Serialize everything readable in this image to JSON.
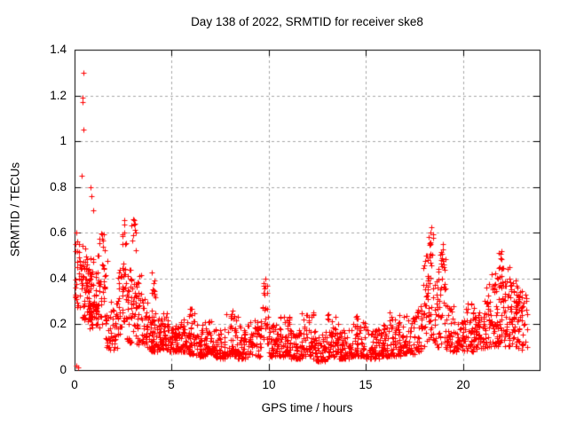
{
  "chart_data": {
    "type": "scatter",
    "title": "Day 138 of 2022, SRMTID for receiver ske8",
    "xlabel": "GPS time / hours",
    "ylabel": "SRMTID / TECUs",
    "xlim": [
      0,
      23.93
    ],
    "ylim": [
      0,
      1.4
    ],
    "xticks": [
      0,
      5,
      10,
      15,
      20
    ],
    "xtick_labels": [
      "0",
      "5",
      "10",
      "15",
      "20"
    ],
    "yticks": [
      0,
      0.2,
      0.4,
      0.6,
      0.8,
      1.0,
      1.2,
      1.4
    ],
    "ytick_labels": [
      "0",
      "0.2",
      "0.4",
      "0.6",
      "0.8",
      "1",
      "1.2",
      "1.4"
    ],
    "grid": true,
    "legend": "none",
    "marker": "plus",
    "marker_size": 7,
    "marker_color": "#ff0000",
    "grid_color": "#a8a8a8",
    "axis_color": "#000000",
    "background_color": "#ffffff",
    "seed": 138,
    "outliers": [
      [
        0.45,
        1.3
      ],
      [
        0.42,
        1.19
      ],
      [
        0.4,
        1.17
      ],
      [
        0.45,
        1.05
      ],
      [
        0.35,
        0.85
      ],
      [
        0.8,
        0.8
      ],
      [
        0.85,
        0.76
      ],
      [
        0.95,
        0.7
      ],
      [
        0.05,
        0.33
      ],
      [
        0.06,
        0.36
      ],
      [
        0.08,
        0.6
      ],
      [
        0.1,
        0.02
      ],
      [
        0.18,
        0.01
      ],
      [
        2.55,
        0.655
      ],
      [
        3.0,
        0.66
      ],
      [
        9.79,
        0.33
      ],
      [
        9.8,
        0.37
      ],
      [
        9.82,
        0.4
      ],
      [
        18.3,
        0.6
      ],
      [
        18.35,
        0.625
      ],
      [
        18.95,
        0.55
      ],
      [
        21.95,
        0.52
      ],
      [
        22.4,
        0.45
      ],
      [
        23.2,
        0.33
      ]
    ],
    "clusters": [
      [
        0.02,
        0.15,
        12,
        0.28,
        0.62,
        1.0
      ],
      [
        0.15,
        0.7,
        35,
        0.25,
        0.55,
        1.2
      ],
      [
        0.4,
        1.2,
        70,
        0.22,
        0.5,
        1.4
      ],
      [
        0.7,
        1.6,
        60,
        0.18,
        0.45,
        1.4
      ],
      [
        1.2,
        1.7,
        20,
        0.35,
        0.6,
        1.1
      ],
      [
        1.6,
        2.2,
        45,
        0.09,
        0.32,
        1.5
      ],
      [
        2.2,
        2.45,
        25,
        0.15,
        0.5,
        1.2
      ],
      [
        2.45,
        2.65,
        28,
        0.2,
        0.65,
        1.1
      ],
      [
        2.65,
        2.95,
        30,
        0.12,
        0.45,
        1.4
      ],
      [
        2.9,
        3.15,
        30,
        0.15,
        0.66,
        1.1
      ],
      [
        3.1,
        3.45,
        30,
        0.1,
        0.45,
        1.4
      ],
      [
        3.45,
        3.85,
        35,
        0.1,
        0.32,
        1.5
      ],
      [
        3.85,
        4.3,
        45,
        0.08,
        0.22,
        1.6
      ],
      [
        3.95,
        4.15,
        18,
        0.12,
        0.43,
        1.2
      ],
      [
        4.3,
        4.8,
        50,
        0.09,
        0.25,
        1.8
      ],
      [
        4.8,
        5.3,
        50,
        0.08,
        0.2,
        1.6
      ],
      [
        5.3,
        5.85,
        55,
        0.08,
        0.24,
        1.7
      ],
      [
        5.85,
        6.2,
        40,
        0.07,
        0.28,
        1.8
      ],
      [
        6.2,
        6.7,
        45,
        0.06,
        0.2,
        1.7
      ],
      [
        6.7,
        7.2,
        45,
        0.07,
        0.22,
        1.7
      ],
      [
        7.2,
        7.8,
        50,
        0.05,
        0.18,
        1.6
      ],
      [
        7.8,
        8.4,
        50,
        0.06,
        0.26,
        1.8
      ],
      [
        8.4,
        9.0,
        50,
        0.05,
        0.2,
        1.7
      ],
      [
        9.0,
        9.6,
        50,
        0.06,
        0.22,
        1.7
      ],
      [
        9.68,
        9.95,
        22,
        0.1,
        0.42,
        1.1
      ],
      [
        9.95,
        10.5,
        50,
        0.06,
        0.2,
        1.7
      ],
      [
        10.5,
        11.1,
        55,
        0.06,
        0.25,
        1.8
      ],
      [
        11.1,
        11.7,
        55,
        0.05,
        0.18,
        1.6
      ],
      [
        11.7,
        12.3,
        55,
        0.06,
        0.26,
        1.8
      ],
      [
        12.3,
        13.0,
        60,
        0.04,
        0.17,
        1.6
      ],
      [
        13.0,
        13.6,
        55,
        0.06,
        0.26,
        1.9
      ],
      [
        13.6,
        14.3,
        60,
        0.05,
        0.18,
        1.6
      ],
      [
        14.3,
        15.0,
        60,
        0.06,
        0.24,
        1.8
      ],
      [
        15.0,
        15.7,
        60,
        0.05,
        0.18,
        1.6
      ],
      [
        15.7,
        16.2,
        50,
        0.06,
        0.2,
        1.7
      ],
      [
        16.2,
        16.8,
        55,
        0.06,
        0.26,
        1.8
      ],
      [
        16.8,
        17.5,
        55,
        0.07,
        0.24,
        1.7
      ],
      [
        17.5,
        17.9,
        35,
        0.08,
        0.3,
        1.5
      ],
      [
        17.9,
        18.2,
        30,
        0.1,
        0.5,
        1.2
      ],
      [
        18.2,
        18.5,
        35,
        0.12,
        0.62,
        1.1
      ],
      [
        18.5,
        18.8,
        30,
        0.1,
        0.45,
        1.25
      ],
      [
        18.8,
        19.15,
        35,
        0.1,
        0.55,
        1.15
      ],
      [
        19.15,
        19.5,
        30,
        0.08,
        0.3,
        1.5
      ],
      [
        19.5,
        20.1,
        50,
        0.08,
        0.22,
        1.6
      ],
      [
        20.1,
        20.6,
        45,
        0.08,
        0.3,
        1.7
      ],
      [
        20.6,
        21.1,
        45,
        0.09,
        0.26,
        1.6
      ],
      [
        21.1,
        21.45,
        35,
        0.1,
        0.38,
        1.3
      ],
      [
        21.45,
        21.8,
        40,
        0.1,
        0.45,
        1.2
      ],
      [
        21.8,
        22.1,
        40,
        0.12,
        0.52,
        1.2
      ],
      [
        22.1,
        22.45,
        40,
        0.1,
        0.45,
        1.25
      ],
      [
        22.45,
        22.8,
        40,
        0.1,
        0.4,
        1.3
      ],
      [
        22.8,
        23.3,
        45,
        0.08,
        0.35,
        1.3
      ]
    ]
  }
}
